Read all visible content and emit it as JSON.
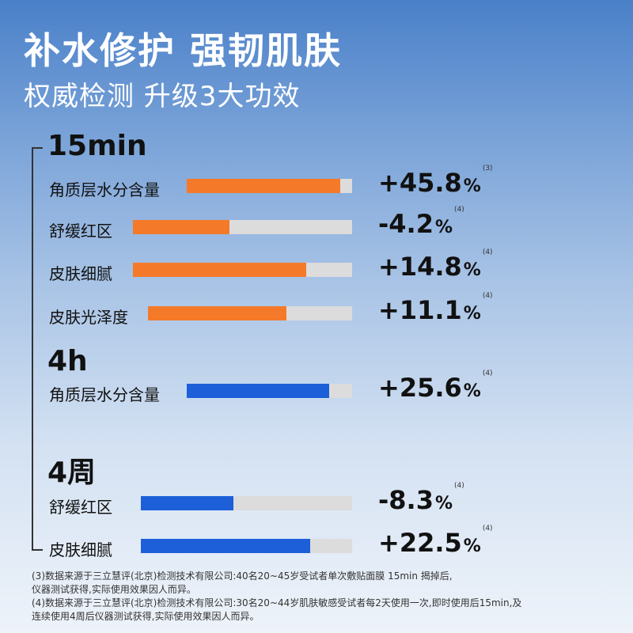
{
  "title": "补水修护 强韧肌肤",
  "subtitle": "权威检测 升级3大功效",
  "colors": {
    "orange": "#f47a2a",
    "blue": "#1c5fd8",
    "track": "#dcdcdc"
  },
  "chart_data": {
    "type": "bar",
    "groups": [
      {
        "label": "15min",
        "color": "#f47a2a",
        "rows": [
          {
            "label": "角质层水分含量",
            "value_text": "+45.8",
            "unit": "%",
            "ref": "(3)",
            "value": 45.8,
            "fill_fraction": 0.93
          },
          {
            "label": "舒缓红区",
            "value_text": "-4.2",
            "unit": "%",
            "ref": "(4)",
            "value": -4.2,
            "fill_fraction": 0.44
          },
          {
            "label": "皮肤细腻",
            "value_text": "+14.8",
            "unit": "%",
            "ref": "(4)",
            "value": 14.8,
            "fill_fraction": 0.79
          },
          {
            "label": "皮肤光泽度",
            "value_text": "+11.1",
            "unit": "%",
            "ref": "(4)",
            "value": 11.1,
            "fill_fraction": 0.68
          }
        ]
      },
      {
        "label": "4h",
        "color": "#1c5fd8",
        "rows": [
          {
            "label": "角质层水分含量",
            "value_text": "+25.6",
            "unit": "%",
            "ref": "(4)",
            "value": 25.6,
            "fill_fraction": 0.86
          }
        ]
      },
      {
        "label": "4周",
        "color": "#1c5fd8",
        "rows": [
          {
            "label": "舒缓红区",
            "value_text": "-8.3",
            "unit": "%",
            "ref": "(4)",
            "value": -8.3,
            "fill_fraction": 0.44
          },
          {
            "label": "皮肤细腻",
            "value_text": "+22.5",
            "unit": "%",
            "ref": "(4)",
            "value": 22.5,
            "fill_fraction": 0.8
          }
        ]
      }
    ]
  },
  "footnotes": [
    "(3)数据来源于三立慧评(北京)检测技术有限公司:40名20~45岁受试者单次敷贴面膜 15min 揭掉后,",
    "仪器测试获得,实际使用效果因人而异。",
    "(4)数据来源于三立慧评(北京)检测技术有限公司:30名20~44岁肌肤敏感受试者每2天使用一次,即时使用后15min,及",
    "连续使用4周后仪器测试获得,实际使用效果因人而异。"
  ]
}
